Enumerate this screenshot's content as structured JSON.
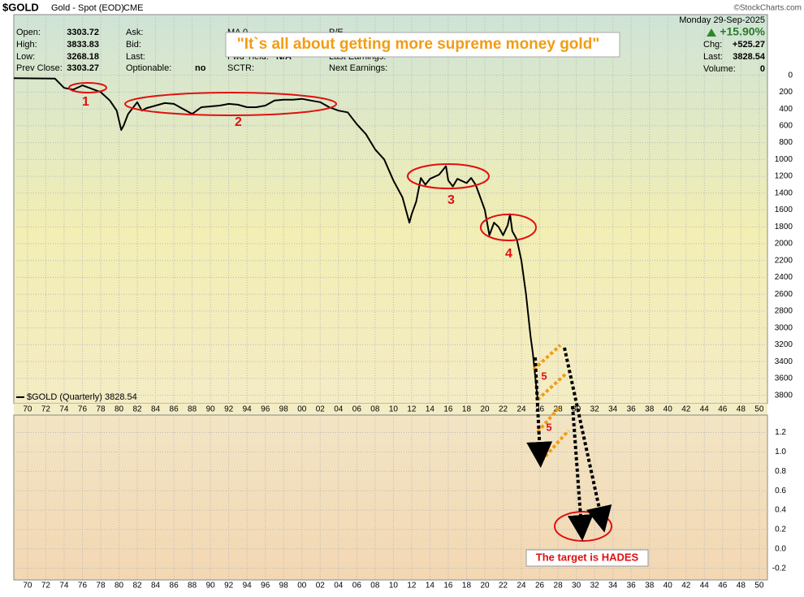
{
  "header": {
    "symbol": "$GOLD",
    "name": "Gold - Spot (EOD)",
    "exchange": "CME",
    "copyright": "©StockCharts.com",
    "date": "Monday  29-Sep-2025",
    "columns": [
      [
        {
          "label": "Open:",
          "value": 3303.72
        },
        {
          "label": "High:",
          "value": 3833.83
        },
        {
          "label": "Low:",
          "value": 3268.18
        },
        {
          "label": "Prev Close:",
          "value": 3303.27
        }
      ],
      [
        {
          "label": "Ask:"
        },
        {
          "label": "Bid:"
        },
        {
          "label": "Last:"
        },
        {
          "label": "Optionable:",
          "value": "no"
        }
      ],
      [
        {
          "label": "MA 0"
        },
        null,
        {
          "label": "Fwd Yield:",
          "value": "N/A"
        },
        {
          "label": "SCTR:"
        }
      ],
      [
        {
          "label": "P/E"
        },
        null,
        {
          "label": "Last Earnings:"
        },
        {
          "label": "Next Earnings:"
        }
      ]
    ],
    "change_pct": "+15.90%",
    "right": [
      {
        "label": "Chg:",
        "value": "+525.27"
      },
      {
        "label": "Last:",
        "value": 3828.54
      },
      {
        "label": "Volume:",
        "value": 0
      }
    ]
  },
  "chart_data": [
    {
      "type": "line",
      "annotation": "\"It`s all about getting more supreme money gold\"",
      "markers": [
        "1",
        "2",
        "3",
        "4",
        "5",
        "5"
      ],
      "target_label": "The target is HADES",
      "inverted": true,
      "grid": true,
      "xlim": [
        1968.5,
        2050.9
      ],
      "ylim": [
        -720,
        3900
      ],
      "xticks": [
        {
          "value": 1970,
          "label": "70"
        },
        {
          "value": 1972,
          "label": "72"
        },
        {
          "value": 1974,
          "label": "74"
        },
        {
          "value": 1976,
          "label": "76"
        },
        {
          "value": 1978,
          "label": "78"
        },
        {
          "value": 1980,
          "label": "80"
        },
        {
          "value": 1982,
          "label": "82"
        },
        {
          "value": 1984,
          "label": "84"
        },
        {
          "value": 1986,
          "label": "86"
        },
        {
          "value": 1988,
          "label": "88"
        },
        {
          "value": 1990,
          "label": "90"
        },
        {
          "value": 1992,
          "label": "92"
        },
        {
          "value": 1994,
          "label": "94"
        },
        {
          "value": 1996,
          "label": "96"
        },
        {
          "value": 1998,
          "label": "98"
        },
        {
          "value": 2000,
          "label": "00"
        },
        {
          "value": 2002,
          "label": "02"
        },
        {
          "value": 2004,
          "label": "04"
        },
        {
          "value": 2006,
          "label": "06"
        },
        {
          "value": 2008,
          "label": "08"
        },
        {
          "value": 2010,
          "label": "10"
        },
        {
          "value": 2012,
          "label": "12"
        },
        {
          "value": 2014,
          "label": "14"
        },
        {
          "value": 2016,
          "label": "16"
        },
        {
          "value": 2018,
          "label": "18"
        },
        {
          "value": 2020,
          "label": "20"
        },
        {
          "value": 2022,
          "label": "22"
        },
        {
          "value": 2024,
          "label": "24"
        },
        {
          "value": 2026,
          "label": "26"
        },
        {
          "value": 2028,
          "label": "28"
        },
        {
          "value": 2030,
          "label": "30"
        },
        {
          "value": 2032,
          "label": "32"
        },
        {
          "value": 2034,
          "label": "34"
        },
        {
          "value": 2036,
          "label": "36"
        },
        {
          "value": 2038,
          "label": "38"
        },
        {
          "value": 2040,
          "label": "40"
        },
        {
          "value": 2042,
          "label": "42"
        },
        {
          "value": 2044,
          "label": "44"
        },
        {
          "value": 2046,
          "label": "46"
        },
        {
          "value": 2048,
          "label": "48"
        },
        {
          "value": 2050,
          "label": "50"
        }
      ],
      "yticks": [
        0,
        200,
        400,
        600,
        800,
        1000,
        1200,
        1400,
        1600,
        1800,
        2000,
        2200,
        2400,
        2600,
        2800,
        3000,
        3200,
        3400,
        3600,
        3800
      ],
      "series": [
        {
          "name": "$GOLD (Quarterly) 3828.54",
          "color": "#000000",
          "x": [
            1968.5,
            1973,
            1974,
            1975,
            1976,
            1977,
            1978,
            1979,
            1979.75,
            1980.25,
            1980.5,
            1981,
            1982,
            1982.5,
            1983,
            1984,
            1985,
            1986,
            1987,
            1988,
            1989,
            1990,
            1991,
            1992,
            1993,
            1994,
            1995,
            1996,
            1997,
            1998,
            1999,
            2000,
            2001,
            2002,
            2003,
            2004,
            2005,
            2006,
            2007,
            2008,
            2009,
            2010,
            2011,
            2011.75,
            2012,
            2012.5,
            2013,
            2013.5,
            2014,
            2015,
            2015.75,
            2016,
            2016.5,
            2017,
            2018,
            2018.5,
            2019,
            2019.5,
            2020,
            2020.5,
            2021,
            2021.5,
            2022,
            2022.5,
            2022.75,
            2023,
            2023.5,
            2024,
            2024.5,
            2025,
            2025.25,
            2025.75
          ],
          "values": [
            35,
            40,
            150,
            170,
            120,
            160,
            200,
            300,
            420,
            650,
            600,
            460,
            320,
            420,
            390,
            360,
            330,
            340,
            400,
            460,
            380,
            370,
            360,
            340,
            350,
            380,
            380,
            360,
            300,
            290,
            290,
            280,
            300,
            320,
            380,
            420,
            440,
            580,
            700,
            880,
            1000,
            1250,
            1450,
            1750,
            1650,
            1500,
            1220,
            1300,
            1230,
            1180,
            1080,
            1250,
            1320,
            1230,
            1280,
            1220,
            1300,
            1450,
            1600,
            1900,
            1750,
            1800,
            1900,
            1780,
            1650,
            1850,
            1950,
            2200,
            2600,
            3100,
            3300,
            3828.54
          ]
        }
      ]
    },
    {
      "type": "panel",
      "ylim": [
        -0.32,
        1.38
      ],
      "yticks": [
        -0.2,
        {
          "value": 0,
          "label": "0.0"
        },
        0.2,
        0.4,
        0.6,
        0.8,
        {
          "value": 1,
          "label": "1.0"
        },
        1.2
      ]
    }
  ]
}
